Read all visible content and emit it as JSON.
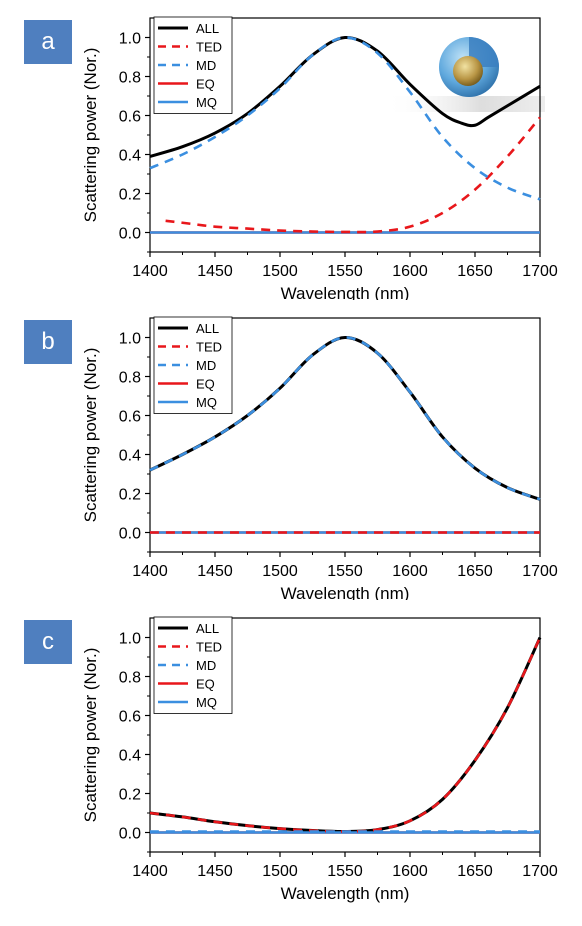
{
  "colors": {
    "ALL": "#000000",
    "TED": "#e8171b",
    "MD": "#3b8fe0",
    "EQ": "#e8171b",
    "MQ": "#3b8fe0",
    "label_bg": "#4f7fbf"
  },
  "chart_data": [
    {
      "panel_label": "a",
      "type": "line",
      "xlabel": "Wavelength (nm)",
      "ylabel": "Scattering power (Nor.)",
      "xlim": [
        1400,
        1700
      ],
      "ylim": [
        -0.1,
        1.1
      ],
      "xticks": [
        "1400",
        "1450",
        "1500",
        "1550",
        "1600",
        "1650",
        "1700"
      ],
      "yticks": [
        "0.0",
        "0.2",
        "0.4",
        "0.6",
        "0.8",
        "1.0"
      ],
      "legend_position": "top-left",
      "inset": "core-shell-sphere",
      "series": [
        {
          "name": "ALL",
          "style": "solid",
          "color_key": "ALL",
          "x": [
            1400,
            1425,
            1450,
            1475,
            1500,
            1525,
            1550,
            1575,
            1600,
            1625,
            1640,
            1650,
            1660,
            1675,
            1700
          ],
          "y": [
            0.39,
            0.44,
            0.51,
            0.61,
            0.75,
            0.91,
            1.0,
            0.93,
            0.76,
            0.61,
            0.56,
            0.55,
            0.59,
            0.65,
            0.75
          ]
        },
        {
          "name": "TED",
          "style": "dashed",
          "color_key": "TED",
          "x": [
            1412,
            1425,
            1450,
            1475,
            1500,
            1525,
            1550,
            1575,
            1600,
            1625,
            1650,
            1675,
            1700
          ],
          "y": [
            0.06,
            0.05,
            0.03,
            0.02,
            0.01,
            0.005,
            0.003,
            0.005,
            0.03,
            0.1,
            0.22,
            0.39,
            0.59
          ]
        },
        {
          "name": "MD",
          "style": "dashed",
          "color_key": "MD",
          "x": [
            1400,
            1425,
            1450,
            1475,
            1500,
            1525,
            1550,
            1575,
            1600,
            1625,
            1650,
            1675,
            1700
          ],
          "y": [
            0.33,
            0.4,
            0.49,
            0.6,
            0.74,
            0.91,
            1.0,
            0.92,
            0.72,
            0.49,
            0.33,
            0.23,
            0.17
          ]
        },
        {
          "name": "EQ",
          "style": "solid",
          "color_key": "EQ",
          "x": [
            1400,
            1700
          ],
          "y": [
            0,
            0
          ]
        },
        {
          "name": "MQ",
          "style": "solid",
          "color_key": "MQ",
          "x": [
            1400,
            1700
          ],
          "y": [
            0,
            0
          ]
        }
      ]
    },
    {
      "panel_label": "b",
      "type": "line",
      "xlabel": "Wavelength (nm)",
      "ylabel": "Scattering power (Nor.)",
      "xlim": [
        1400,
        1700
      ],
      "ylim": [
        -0.1,
        1.1
      ],
      "xticks": [
        "1400",
        "1450",
        "1500",
        "1550",
        "1600",
        "1650",
        "1700"
      ],
      "yticks": [
        "0.0",
        "0.2",
        "0.4",
        "0.6",
        "0.8",
        "1.0"
      ],
      "legend_position": "top-left",
      "series": [
        {
          "name": "ALL",
          "style": "solid",
          "color_key": "ALL",
          "x": [
            1400,
            1425,
            1450,
            1475,
            1500,
            1525,
            1550,
            1575,
            1600,
            1625,
            1650,
            1675,
            1700
          ],
          "y": [
            0.32,
            0.4,
            0.49,
            0.6,
            0.74,
            0.91,
            1.0,
            0.92,
            0.72,
            0.49,
            0.33,
            0.23,
            0.17
          ]
        },
        {
          "name": "TED",
          "style": "dashed",
          "color_key": "TED",
          "x": [
            1400,
            1700
          ],
          "y": [
            0,
            0
          ]
        },
        {
          "name": "MD",
          "style": "dashed",
          "color_key": "MD",
          "x": [
            1400,
            1425,
            1450,
            1475,
            1500,
            1525,
            1550,
            1575,
            1600,
            1625,
            1650,
            1675,
            1700
          ],
          "y": [
            0.32,
            0.4,
            0.49,
            0.6,
            0.74,
            0.91,
            1.0,
            0.92,
            0.72,
            0.49,
            0.33,
            0.23,
            0.17
          ]
        },
        {
          "name": "EQ",
          "style": "solid",
          "color_key": "EQ",
          "x": [
            1400,
            1700
          ],
          "y": [
            0,
            0
          ]
        },
        {
          "name": "MQ",
          "style": "solid",
          "color_key": "MQ",
          "x": [
            1400,
            1700
          ],
          "y": [
            0,
            0
          ]
        }
      ]
    },
    {
      "panel_label": "c",
      "type": "line",
      "xlabel": "Wavelength (nm)",
      "ylabel": "Scattering power (Nor.)",
      "xlim": [
        1400,
        1700
      ],
      "ylim": [
        -0.1,
        1.1
      ],
      "xticks": [
        "1400",
        "1450",
        "1500",
        "1550",
        "1600",
        "1650",
        "1700"
      ],
      "yticks": [
        "0.0",
        "0.2",
        "0.4",
        "0.6",
        "0.8",
        "1.0"
      ],
      "legend_position": "top-left",
      "series": [
        {
          "name": "ALL",
          "style": "solid",
          "color_key": "ALL",
          "x": [
            1400,
            1425,
            1450,
            1475,
            1500,
            1525,
            1550,
            1575,
            1600,
            1625,
            1650,
            1675,
            1700
          ],
          "y": [
            0.1,
            0.08,
            0.055,
            0.035,
            0.02,
            0.01,
            0.005,
            0.015,
            0.06,
            0.17,
            0.37,
            0.64,
            1.0
          ]
        },
        {
          "name": "TED",
          "style": "dashed",
          "color_key": "TED",
          "x": [
            1400,
            1425,
            1450,
            1475,
            1500,
            1525,
            1550,
            1575,
            1600,
            1625,
            1650,
            1675,
            1700
          ],
          "y": [
            0.1,
            0.08,
            0.055,
            0.035,
            0.02,
            0.01,
            0.005,
            0.015,
            0.06,
            0.17,
            0.37,
            0.64,
            1.0
          ]
        },
        {
          "name": "MD",
          "style": "dashed",
          "color_key": "MD",
          "x": [
            1400,
            1700
          ],
          "y": [
            0.005,
            0.005
          ]
        },
        {
          "name": "EQ",
          "style": "solid",
          "color_key": "EQ",
          "x": [
            1400,
            1700
          ],
          "y": [
            0,
            0
          ]
        },
        {
          "name": "MQ",
          "style": "solid",
          "color_key": "MQ",
          "x": [
            1400,
            1700
          ],
          "y": [
            0,
            0
          ]
        }
      ]
    }
  ]
}
